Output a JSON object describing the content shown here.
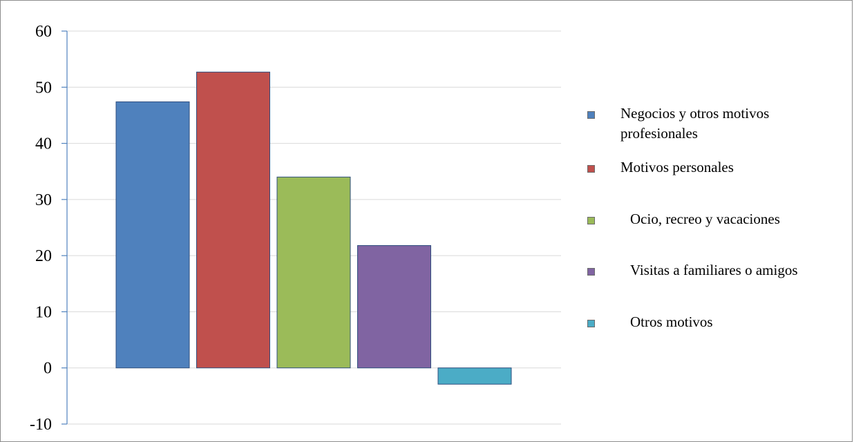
{
  "chart_data": {
    "type": "bar",
    "title": "",
    "xlabel": "",
    "ylabel": "",
    "ylim": [
      -10,
      60
    ],
    "yticks": [
      60,
      50,
      40,
      30,
      20,
      10,
      0,
      -10
    ],
    "ytick_labels": [
      "60",
      "50",
      "40",
      "30",
      "20",
      "10",
      "0",
      "-10"
    ],
    "grid": true,
    "legend_position": "right",
    "series": [
      {
        "name": "Negocios y otros motivos profesionales",
        "value": 47.4,
        "color": "#4f81bd"
      },
      {
        "name": "Motivos personales",
        "value": 52.7,
        "color": "#c0504d"
      },
      {
        "name": "Ocio, recreo y vacaciones",
        "value": 34.0,
        "color": "#9bbb59"
      },
      {
        "name": "Visitas a familiares o amigos",
        "value": 21.8,
        "color": "#8064a2"
      },
      {
        "name": "Otros motivos",
        "value": -2.9,
        "color": "#4bacc6"
      }
    ]
  }
}
